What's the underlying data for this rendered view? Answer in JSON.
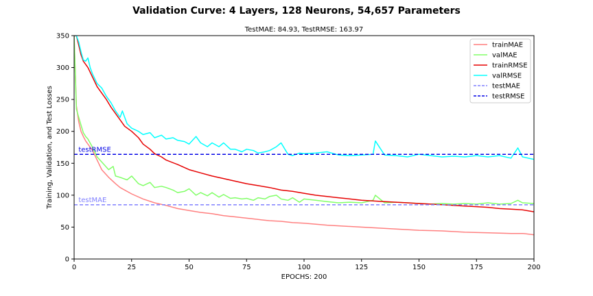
{
  "chart_data": {
    "type": "line",
    "suptitle": "Validation Curve: 4 Layers, 128 Neurons, 54,657 Parameters",
    "title": "TestMAE: 84.93, TestRMSE: 163.97",
    "xlabel": "EPOCHS: 200",
    "ylabel": "Training, Validation, and Test Losses",
    "xlim": [
      0,
      200
    ],
    "ylim": [
      0,
      350
    ],
    "xticks": [
      "0",
      "25",
      "50",
      "75",
      "100",
      "125",
      "150",
      "175",
      "200"
    ],
    "yticks": [
      "0",
      "50",
      "100",
      "150",
      "200",
      "250",
      "300",
      "350"
    ],
    "grid": false,
    "legend_position": "top-right",
    "series": [
      {
        "name": "trainMAE",
        "color": "#ff7f7f",
        "style": "solid",
        "x": [
          0,
          1,
          2,
          3,
          4,
          5,
          6,
          8,
          10,
          12,
          15,
          18,
          20,
          25,
          30,
          35,
          40,
          45,
          50,
          55,
          60,
          65,
          70,
          75,
          80,
          85,
          90,
          95,
          100,
          110,
          120,
          130,
          140,
          150,
          160,
          170,
          180,
          190,
          195,
          200
        ],
        "y": [
          350,
          240,
          215,
          200,
          192,
          185,
          180,
          170,
          155,
          140,
          128,
          118,
          112,
          102,
          94,
          88,
          84,
          79,
          76,
          73,
          71,
          68,
          66,
          64,
          62,
          60,
          59,
          57,
          56,
          53,
          51,
          49,
          47,
          45,
          44,
          42,
          41,
          40,
          40,
          38
        ]
      },
      {
        "name": "valMAE",
        "color": "#80ff66",
        "style": "solid",
        "x": [
          0,
          1,
          2,
          3,
          4,
          5,
          6,
          8,
          10,
          12,
          15,
          17,
          18,
          20,
          23,
          25,
          28,
          30,
          33,
          35,
          38,
          40,
          43,
          45,
          48,
          50,
          53,
          55,
          58,
          60,
          63,
          65,
          68,
          70,
          73,
          75,
          78,
          80,
          83,
          85,
          88,
          90,
          93,
          95,
          98,
          100,
          105,
          110,
          115,
          120,
          125,
          130,
          131,
          135,
          140,
          145,
          150,
          155,
          160,
          165,
          170,
          175,
          180,
          185,
          190,
          193,
          195,
          200
        ],
        "y": [
          350,
          235,
          222,
          210,
          198,
          192,
          188,
          175,
          160,
          152,
          140,
          145,
          130,
          128,
          124,
          130,
          118,
          115,
          120,
          112,
          114,
          112,
          108,
          104,
          106,
          110,
          100,
          104,
          99,
          104,
          97,
          101,
          95,
          96,
          94,
          95,
          92,
          96,
          94,
          98,
          100,
          94,
          92,
          96,
          89,
          94,
          92,
          90,
          88,
          89,
          88,
          92,
          100,
          88,
          89,
          88,
          87,
          86,
          87,
          86,
          87,
          86,
          88,
          86,
          87,
          92,
          88,
          87
        ]
      },
      {
        "name": "trainRMSE",
        "color": "#e60000",
        "style": "solid",
        "x": [
          0,
          1,
          2,
          3,
          4,
          5,
          6,
          8,
          10,
          12,
          14,
          16,
          18,
          20,
          22,
          25,
          28,
          30,
          33,
          35,
          38,
          40,
          45,
          50,
          55,
          60,
          65,
          70,
          75,
          80,
          85,
          90,
          95,
          100,
          105,
          110,
          115,
          120,
          125,
          130,
          135,
          140,
          145,
          150,
          155,
          160,
          165,
          170,
          175,
          180,
          185,
          190,
          195,
          200
        ],
        "y": [
          350,
          355,
          335,
          320,
          310,
          305,
          300,
          285,
          270,
          260,
          250,
          238,
          228,
          218,
          208,
          200,
          190,
          180,
          172,
          165,
          160,
          155,
          148,
          140,
          135,
          130,
          126,
          122,
          118,
          115,
          112,
          108,
          106,
          103,
          100,
          98,
          96,
          94,
          92,
          91,
          90,
          89,
          88,
          87,
          86,
          85,
          84,
          83,
          82,
          81,
          79,
          78,
          77,
          74
        ]
      },
      {
        "name": "valRMSE",
        "color": "#00ffff",
        "style": "solid",
        "x": [
          0,
          1,
          2,
          3,
          4,
          5,
          6,
          7,
          8,
          10,
          12,
          14,
          16,
          18,
          20,
          21,
          23,
          25,
          28,
          30,
          33,
          35,
          38,
          40,
          43,
          45,
          48,
          50,
          53,
          55,
          58,
          60,
          63,
          65,
          68,
          70,
          73,
          75,
          78,
          80,
          83,
          85,
          88,
          90,
          93,
          95,
          98,
          100,
          105,
          110,
          115,
          120,
          125,
          130,
          131,
          135,
          140,
          145,
          150,
          155,
          160,
          165,
          170,
          175,
          180,
          185,
          190,
          193,
          195,
          200
        ],
        "y": [
          350,
          360,
          340,
          325,
          312,
          310,
          315,
          300,
          290,
          275,
          268,
          255,
          245,
          232,
          222,
          232,
          212,
          205,
          200,
          195,
          198,
          190,
          194,
          188,
          190,
          186,
          184,
          180,
          192,
          182,
          176,
          182,
          176,
          182,
          172,
          172,
          168,
          172,
          170,
          166,
          168,
          170,
          176,
          182,
          164,
          162,
          166,
          165,
          166,
          168,
          163,
          162,
          163,
          164,
          185,
          163,
          162,
          160,
          164,
          162,
          160,
          161,
          160,
          162,
          160,
          162,
          158,
          174,
          160,
          156
        ]
      },
      {
        "name": "testMAE",
        "color": "#7f7fff",
        "style": "dashed",
        "x": [
          0,
          200
        ],
        "y": [
          84.93,
          84.93
        ]
      },
      {
        "name": "testRMSE",
        "color": "#0000e6",
        "style": "dashed",
        "x": [
          0,
          200
        ],
        "y": [
          163.97,
          163.97
        ]
      }
    ],
    "annotations": [
      {
        "text": "testRMSE",
        "x": 1,
        "y": 163.97,
        "color": "#0000e6"
      },
      {
        "text": "testMAE",
        "x": 1,
        "y": 84.93,
        "color": "#7f7fff"
      }
    ]
  }
}
